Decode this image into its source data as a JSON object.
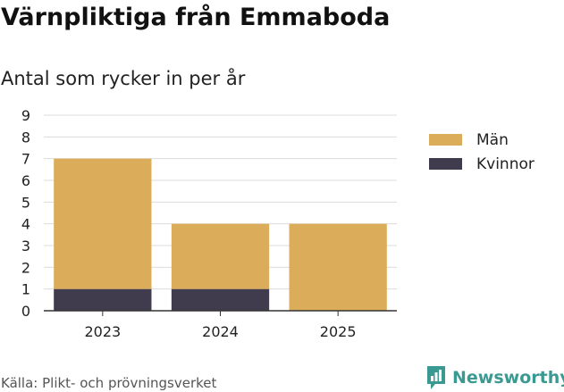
{
  "title": "Värnpliktiga från Emmaboda",
  "subtitle": "Antal som rycker in per år",
  "source": "Källa: Plikt- och prövningsverket",
  "brand": {
    "name": "Newsworthy",
    "icon": "newsworthy-logo-icon",
    "color": "#3a9a92"
  },
  "chart_data": {
    "type": "bar",
    "stacked": true,
    "categories": [
      "2023",
      "2024",
      "2025"
    ],
    "series": [
      {
        "name": "Kvinnor",
        "values": [
          1,
          1,
          0
        ],
        "color": "#403c4d"
      },
      {
        "name": "Män",
        "values": [
          6,
          3,
          4
        ],
        "color": "#dbac5a"
      }
    ],
    "legend_order": [
      "Män",
      "Kvinnor"
    ],
    "yticks": [
      0,
      1,
      2,
      3,
      4,
      5,
      6,
      7,
      8,
      9
    ],
    "ylim": [
      0,
      9
    ],
    "grid": true,
    "legend_position": "right",
    "xlabel": "",
    "ylabel": ""
  }
}
